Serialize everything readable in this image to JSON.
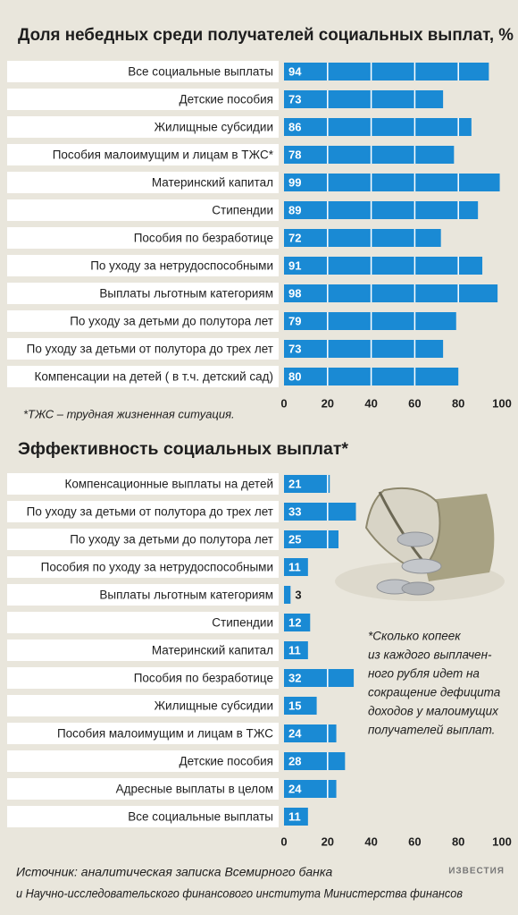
{
  "chart_data": [
    {
      "type": "bar",
      "orientation": "horizontal",
      "title": "Доля небедных среди получателей социальных выплат, %",
      "categories": [
        "Все социальные выплаты",
        "Детские пособия",
        "Жилищные субсидии",
        "Пособия малоимущим и лицам в ТЖС*",
        "Материнский капитал",
        "Стипендии",
        "Пособия по безработице",
        "По уходу за нетрудоспособными",
        "Выплаты льготным категориям",
        "По уходу за детьми до полутора лет",
        "По уходу за детьми от полутора до трех лет",
        "Компенсации на детей ( в т.ч. детский сад)"
      ],
      "values": [
        94,
        73,
        86,
        78,
        99,
        89,
        72,
        91,
        98,
        79,
        73,
        80
      ],
      "color": "#1a8ad4",
      "xlim": [
        0,
        100
      ],
      "xticks": [
        0,
        20,
        40,
        60,
        80,
        100
      ],
      "grid": true,
      "note": "*ТЖС – трудная жизненная ситуация."
    },
    {
      "type": "bar",
      "orientation": "horizontal",
      "title": "Эффективность социальных выплат*",
      "categories": [
        "Компенсационные выплаты на детей",
        "По уходу за детьми от полутора до трех лет",
        "По уходу за детьми до полутора лет",
        "Пособия по уходу за нетрудоспособными",
        "Выплаты льготным категориям",
        "Стипендии",
        "Материнский капитал",
        "Пособия по безработице",
        "Жилищные субсидии",
        "Пособия малоимущим и лицам в ТЖС",
        "Детские пособия",
        "Адресные выплаты в целом",
        "Все социальные выплаты"
      ],
      "values": [
        21,
        33,
        25,
        11,
        3,
        12,
        11,
        32,
        15,
        24,
        28,
        24,
        11
      ],
      "color": "#1a8ad4",
      "xlim": [
        0,
        100
      ],
      "xticks": [
        0,
        20,
        40,
        60,
        80,
        100
      ],
      "grid": true,
      "note_lines": [
        "*Сколько копеек",
        "из каждого выплачен-",
        "ного рубля идет на",
        "сокращение дефицита",
        "доходов у малоимущих",
        "получателей выплат."
      ]
    }
  ],
  "source_lines": [
    "Источник: аналитическая записка Всемирного банка",
    "и Научно-исследовательского финансового института Министерства финансов"
  ],
  "logo": "ИЗВЕСТИЯ"
}
